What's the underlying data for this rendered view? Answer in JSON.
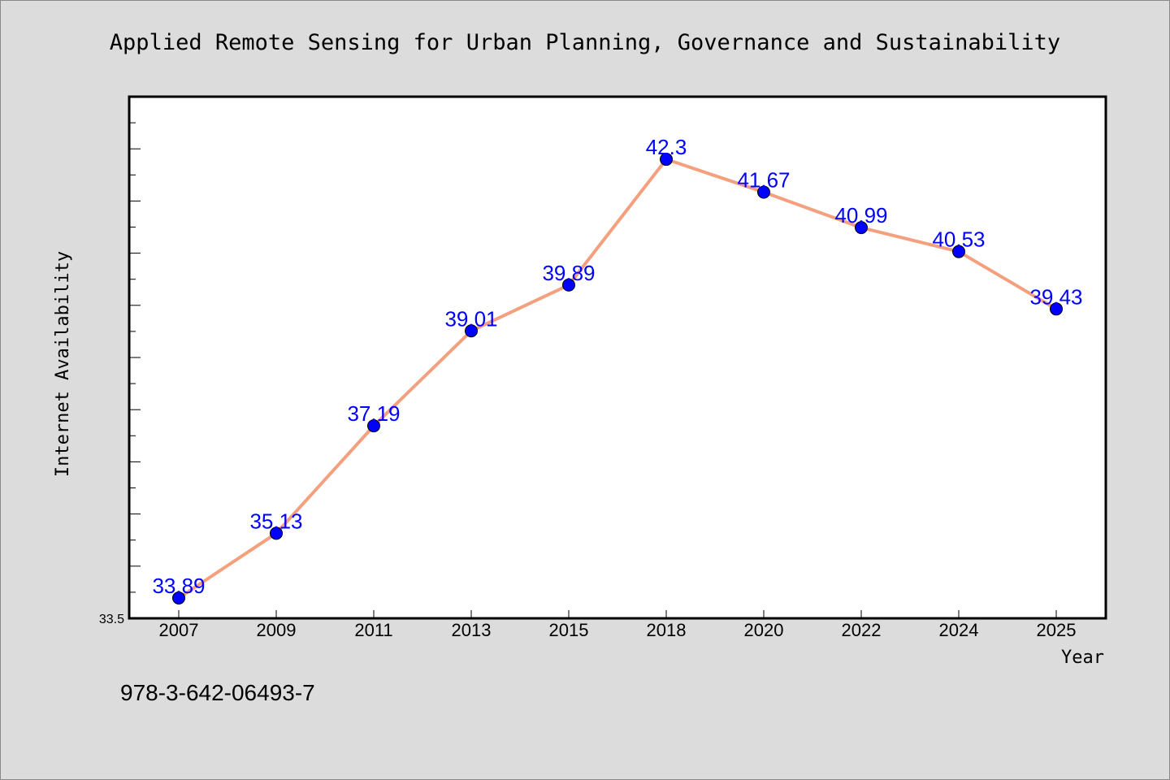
{
  "chart_data": {
    "type": "line",
    "title": "Applied Remote Sensing for Urban Planning, Governance and Sustainability",
    "xlabel": "Year",
    "ylabel": "Internet Availability",
    "categories": [
      "2007",
      "2009",
      "2011",
      "2013",
      "2015",
      "2018",
      "2020",
      "2022",
      "2024",
      "2025"
    ],
    "values": [
      33.89,
      35.13,
      37.19,
      39.01,
      39.89,
      42.3,
      41.67,
      40.99,
      40.53,
      39.43
    ],
    "data_labels": [
      "33.89",
      "35.13",
      "37.19",
      "39.01",
      "39.89",
      "42.3",
      "41.67",
      "40.99",
      "40.53",
      "39.43"
    ],
    "ylim": [
      33.5,
      43.5
    ],
    "y_min_label": "33.5",
    "grid": false,
    "legend": "none",
    "line_color": "#f4a07e",
    "marker_color": "#0000ff",
    "label_color": "#0000ff"
  },
  "footer": {
    "isbn": "978-3-642-06493-7"
  }
}
